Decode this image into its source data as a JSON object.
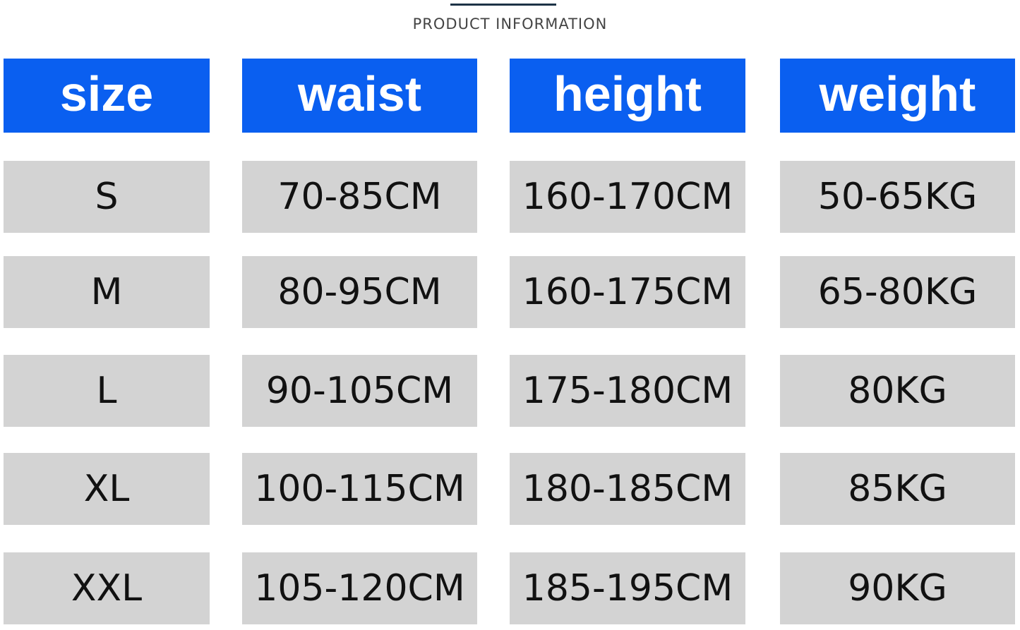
{
  "title": "PRODUCT INFORMATION",
  "colors": {
    "header_bg": "#0a5ff0",
    "cell_bg": "#d3d3d3",
    "header_text": "#ffffff"
  },
  "columns": [
    "size",
    "waist",
    "height",
    "weight"
  ],
  "rows": [
    [
      "S",
      "70-85CM",
      "160-170CM",
      "50-65KG"
    ],
    [
      "M",
      "80-95CM",
      "160-175CM",
      "65-80KG"
    ],
    [
      "L",
      "90-105CM",
      "175-180CM",
      "80KG"
    ],
    [
      "XL",
      "100-115CM",
      "180-185CM",
      "85KG"
    ],
    [
      "XXL",
      "105-120CM",
      "185-195CM",
      "90KG"
    ]
  ]
}
